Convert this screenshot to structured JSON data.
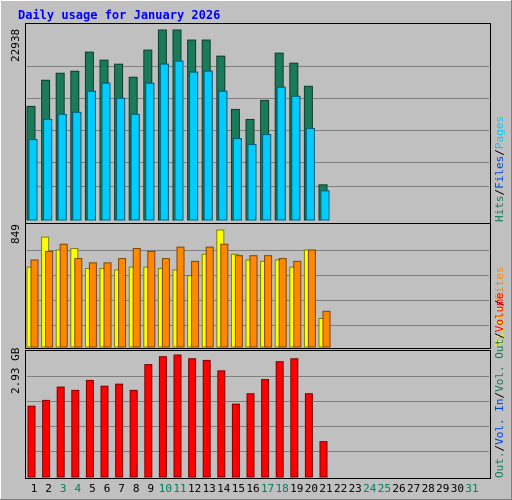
{
  "chart_data": [
    {
      "type": "bar",
      "panel": "hits-files-pages",
      "title": "Daily usage for January 2026",
      "y_max_label": "22938",
      "days": [
        1,
        2,
        3,
        4,
        5,
        6,
        7,
        8,
        9,
        10,
        11,
        12,
        13,
        14,
        15,
        16,
        17,
        18,
        19,
        20,
        21,
        22,
        23,
        24,
        25,
        26,
        27,
        28,
        29,
        30,
        31
      ],
      "series": [
        {
          "name": "Hits",
          "color": "#1a7a5a",
          "values": [
            11300,
            13900,
            14600,
            14800,
            16700,
            15900,
            15500,
            14200,
            16900,
            18900,
            18900,
            17900,
            17900,
            16300,
            11000,
            10000,
            11900,
            16600,
            15600,
            13300,
            3500,
            0,
            0,
            0,
            0,
            0,
            0,
            0,
            0,
            0,
            0
          ]
        },
        {
          "name": "Files",
          "color": "#0044dd",
          "values": [
            8000,
            10000,
            10500,
            10700,
            12800,
            13600,
            12100,
            10500,
            13600,
            15500,
            15800,
            14700,
            14800,
            12800,
            8100,
            7500,
            8500,
            13200,
            12300,
            9100,
            2900,
            0,
            0,
            0,
            0,
            0,
            0,
            0,
            0,
            0,
            0
          ]
        },
        {
          "name": "Pages",
          "color": "#00ccff",
          "values": [
            8000,
            10000,
            10500,
            10700,
            12800,
            13600,
            12100,
            10500,
            13600,
            15500,
            15800,
            14700,
            14800,
            12800,
            8100,
            7500,
            8500,
            13200,
            12300,
            9100,
            2900,
            0,
            0,
            0,
            0,
            0,
            0,
            0,
            0,
            0,
            0
          ]
        }
      ],
      "legend": [
        "Hits",
        "/",
        "Files",
        "/",
        "Pages"
      ]
    },
    {
      "type": "bar",
      "panel": "visits-sites",
      "y_max_label": "849",
      "days": [
        1,
        2,
        3,
        4,
        5,
        6,
        7,
        8,
        9,
        10,
        11,
        12,
        13,
        14,
        15,
        16,
        17,
        18,
        19,
        20,
        21,
        22,
        23,
        24,
        25,
        26,
        27,
        28,
        29,
        30,
        31
      ],
      "series": [
        {
          "name": "Visits",
          "color": "#ffff00",
          "values": [
            560,
            770,
            680,
            690,
            550,
            550,
            540,
            560,
            560,
            550,
            540,
            500,
            650,
            820,
            650,
            610,
            600,
            610,
            560,
            680,
            200,
            0,
            0,
            0,
            0,
            0,
            0,
            0,
            0,
            0,
            0
          ]
        },
        {
          "name": "Sites",
          "color": "#ff8800",
          "values": [
            610,
            670,
            720,
            620,
            590,
            590,
            620,
            690,
            670,
            620,
            700,
            600,
            700,
            720,
            640,
            640,
            640,
            620,
            600,
            680,
            250,
            0,
            0,
            0,
            0,
            0,
            0,
            0,
            0,
            0,
            0
          ]
        }
      ],
      "legend": [
        "Visits",
        "/",
        "Sites"
      ]
    },
    {
      "type": "bar",
      "panel": "volume",
      "y_max_label": "2.93 GB",
      "days": [
        1,
        2,
        3,
        4,
        5,
        6,
        7,
        8,
        9,
        10,
        11,
        12,
        13,
        14,
        15,
        16,
        17,
        18,
        19,
        20,
        21,
        22,
        23,
        24,
        25,
        26,
        27,
        28,
        29,
        30,
        31
      ],
      "series": [
        {
          "name": "Volume",
          "color": "#ff0000",
          "values": [
            1.7,
            1.84,
            2.16,
            2.08,
            2.32,
            2.18,
            2.23,
            2.08,
            2.7,
            2.89,
            2.93,
            2.84,
            2.8,
            2.55,
            1.75,
            2.0,
            2.34,
            2.77,
            2.84,
            2.0,
            0.85,
            0,
            0,
            0,
            0,
            0,
            0,
            0,
            0,
            0,
            0
          ]
        }
      ],
      "legend": [
        "Out.",
        "/",
        "Vol. In",
        "/",
        "Vol. Out",
        "/",
        "Volume"
      ]
    }
  ],
  "weekend_days": [
    3,
    4,
    10,
    11,
    17,
    18,
    24,
    25,
    31
  ],
  "colors": {
    "background": "#c0c0c0",
    "border_light": "#ffffff",
    "border_dark": "#808080",
    "title": "#0000ff",
    "axis_label": "#000000",
    "day_label": "#000000",
    "weekend_label": "#00805c",
    "gridline": "#808080"
  }
}
